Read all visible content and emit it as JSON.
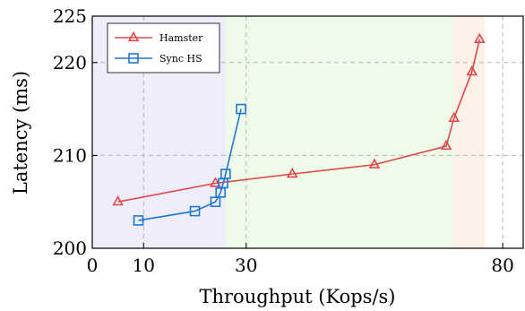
{
  "chart_data": {
    "type": "line",
    "title": "",
    "xlabel": "Throughput (Kops/s)",
    "ylabel": "Latency (ms)",
    "xlim": [
      0,
      84
    ],
    "ylim": [
      200,
      225
    ],
    "xticks": [
      0,
      10,
      30,
      80
    ],
    "xtick_labels": [
      "0",
      "10",
      "30",
      "80"
    ],
    "yticks": [
      200,
      210,
      220,
      225
    ],
    "ytick_labels": [
      "200",
      "210",
      "220",
      "225"
    ],
    "grid": "dashed",
    "legend_position": "top-left",
    "background_regions": [
      {
        "x": [
          0,
          26
        ],
        "color": "#eeeefb"
      },
      {
        "x": [
          26,
          70.5
        ],
        "color": "#eefbe9"
      },
      {
        "x": [
          70.5,
          76.5
        ],
        "color": "#fdf1e8"
      }
    ],
    "series": [
      {
        "name": "Hamster",
        "color": "#e0474c",
        "marker": "triangle",
        "x": [
          5,
          24,
          39,
          55,
          69,
          70.5,
          74,
          75.5
        ],
        "y": [
          205,
          207,
          208,
          209,
          211,
          214,
          219,
          222.5
        ]
      },
      {
        "name": "Sync HS",
        "color": "#1f77d4",
        "marker": "square",
        "x": [
          9,
          20,
          24,
          25,
          25.5,
          26,
          29
        ],
        "y": [
          203,
          204,
          205,
          206,
          207,
          208,
          215
        ]
      }
    ]
  }
}
